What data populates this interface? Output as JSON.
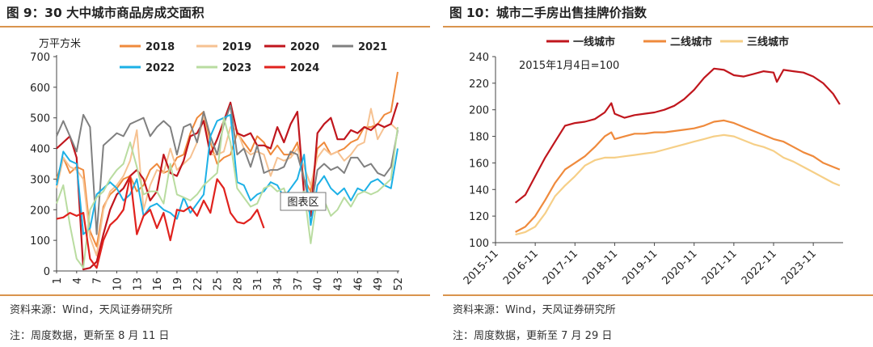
{
  "charts": [
    {
      "title": "图 9：30 大中城市商品房成交面积",
      "source": "资料来源：Wind，天风证券研究所",
      "note": "注：周度数据，更新至 8 月 11 日",
      "tooltip": "图表区"
    },
    {
      "title": "图 10：城市二手房出售挂牌价指数",
      "source": "资料来源：Wind，天风证券研究所",
      "note": "注：周度数据，更新至 7 月 29 日",
      "annotation": "2015年1月4日=100"
    }
  ],
  "chart_data": [
    {
      "type": "line",
      "title": "30 大中城市商品房成交面积",
      "ylabel": "万平方米",
      "ylim": [
        0,
        700
      ],
      "yticks": [
        0,
        100,
        200,
        300,
        400,
        500,
        600,
        700
      ],
      "xticks": [
        "1",
        "4",
        "7",
        "10",
        "13",
        "16",
        "19",
        "22",
        "25",
        "28",
        "31",
        "34",
        "37",
        "40",
        "43",
        "46",
        "49",
        "52"
      ],
      "legend_position": "top-center",
      "series": [
        {
          "name": "2018",
          "color": "#ef8a3c",
          "values": [
            300,
            370,
            320,
            340,
            330,
            130,
            80,
            210,
            250,
            270,
            300,
            310,
            260,
            280,
            330,
            350,
            320,
            330,
            370,
            380,
            450,
            500,
            520,
            420,
            350,
            370,
            380,
            450,
            420,
            390,
            440,
            420,
            380,
            410,
            380,
            380,
            420,
            300,
            260,
            400,
            420,
            380,
            390,
            400,
            420,
            430,
            470,
            470,
            480,
            510,
            520,
            650
          ]
        },
        {
          "name": "2019",
          "color": "#f6c292",
          "values": [
            270,
            370,
            340,
            330,
            300,
            110,
            50,
            200,
            260,
            280,
            310,
            360,
            460,
            200,
            280,
            330,
            320,
            400,
            330,
            350,
            370,
            420,
            500,
            380,
            380,
            390,
            470,
            460,
            400,
            380,
            390,
            380,
            310,
            370,
            360,
            370,
            400,
            340,
            280,
            370,
            400,
            380,
            390,
            360,
            380,
            410,
            420,
            530,
            430,
            470,
            480,
            460
          ]
        },
        {
          "name": "2020",
          "color": "#c0161d",
          "values": [
            400,
            420,
            440,
            370,
            5,
            10,
            30,
            120,
            200,
            250,
            270,
            310,
            330,
            300,
            230,
            260,
            380,
            320,
            310,
            360,
            440,
            450,
            490,
            380,
            430,
            490,
            550,
            450,
            440,
            450,
            410,
            410,
            400,
            470,
            420,
            480,
            520,
            250,
            180,
            450,
            480,
            500,
            430,
            430,
            460,
            450,
            470,
            460,
            480,
            470,
            480,
            550
          ]
        },
        {
          "name": "2021",
          "color": "#808080",
          "values": [
            440,
            490,
            440,
            390,
            510,
            470,
            120,
            410,
            430,
            450,
            440,
            480,
            490,
            500,
            440,
            470,
            490,
            470,
            380,
            470,
            480,
            420,
            520,
            440,
            380,
            480,
            540,
            380,
            400,
            340,
            410,
            320,
            330,
            330,
            340,
            390,
            380,
            300,
            200,
            330,
            350,
            330,
            340,
            320,
            370,
            370,
            340,
            350,
            320,
            310,
            340,
            460
          ]
        },
        {
          "name": "2022",
          "color": "#1cb0e6",
          "values": [
            280,
            390,
            360,
            350,
            120,
            140,
            250,
            270,
            290,
            270,
            230,
            250,
            300,
            180,
            210,
            220,
            200,
            190,
            170,
            240,
            190,
            220,
            250,
            440,
            490,
            500,
            510,
            290,
            280,
            230,
            250,
            260,
            290,
            280,
            240,
            270,
            300,
            380,
            150,
            280,
            310,
            270,
            250,
            270,
            230,
            270,
            260,
            290,
            300,
            280,
            270,
            400
          ]
        },
        {
          "name": "2023",
          "color": "#b9dca0",
          "values": [
            220,
            280,
            150,
            40,
            10,
            200,
            240,
            260,
            300,
            330,
            350,
            420,
            340,
            250,
            260,
            260,
            220,
            350,
            250,
            240,
            230,
            250,
            280,
            300,
            320,
            500,
            420,
            270,
            240,
            210,
            220,
            270,
            280,
            260,
            270,
            200,
            230,
            260,
            90,
            250,
            230,
            180,
            200,
            240,
            210,
            250,
            260,
            250,
            260,
            280,
            300,
            470
          ]
        },
        {
          "name": "2024",
          "color": "#e0221e",
          "values": [
            170,
            175,
            190,
            180,
            190,
            40,
            10,
            100,
            150,
            170,
            200,
            310,
            120,
            180,
            200,
            140,
            190,
            100,
            200,
            195,
            210,
            180,
            230,
            190,
            300,
            270,
            190,
            160,
            155,
            170,
            200,
            140
          ]
        }
      ]
    },
    {
      "type": "line",
      "title": "城市二手房出售挂牌价指数",
      "ylim": [
        100,
        240
      ],
      "yticks": [
        100,
        120,
        140,
        160,
        180,
        200,
        220,
        240
      ],
      "xticks": [
        "2015-11",
        "2016-11",
        "2017-11",
        "2018-11",
        "2019-11",
        "2020-11",
        "2021-11",
        "2022-11",
        "2023-11"
      ],
      "xlim": [
        "2015-11",
        "2024-08"
      ],
      "annotation": "2015年1月4日=100",
      "legend_position": "top-center",
      "series": [
        {
          "name": "一线城市",
          "color": "#c0161d",
          "x": [
            "2016-05",
            "2016-08",
            "2016-11",
            "2017-02",
            "2017-05",
            "2017-08",
            "2017-11",
            "2018-02",
            "2018-05",
            "2018-08",
            "2018-10",
            "2018-11",
            "2019-02",
            "2019-05",
            "2019-08",
            "2019-11",
            "2020-02",
            "2020-05",
            "2020-08",
            "2020-11",
            "2021-02",
            "2021-05",
            "2021-08",
            "2021-11",
            "2022-02",
            "2022-05",
            "2022-08",
            "2022-11",
            "2022-12",
            "2023-02",
            "2023-05",
            "2023-08",
            "2023-11",
            "2024-02",
            "2024-05",
            "2024-07"
          ],
          "values": [
            130,
            136,
            150,
            164,
            176,
            188,
            190,
            191,
            193,
            198,
            205,
            197,
            194,
            196,
            197,
            198,
            200,
            203,
            208,
            215,
            224,
            231,
            230,
            226,
            225,
            227,
            229,
            228,
            221,
            230,
            229,
            228,
            225,
            220,
            212,
            204
          ]
        },
        {
          "name": "二线城市",
          "color": "#ef8a3c",
          "x": [
            "2016-05",
            "2016-08",
            "2016-11",
            "2017-02",
            "2017-05",
            "2017-08",
            "2017-11",
            "2018-02",
            "2018-05",
            "2018-08",
            "2018-10",
            "2018-11",
            "2019-02",
            "2019-05",
            "2019-08",
            "2019-11",
            "2020-02",
            "2020-05",
            "2020-08",
            "2020-11",
            "2021-02",
            "2021-05",
            "2021-08",
            "2021-11",
            "2022-02",
            "2022-05",
            "2022-08",
            "2022-11",
            "2023-02",
            "2023-05",
            "2023-08",
            "2023-11",
            "2024-02",
            "2024-05",
            "2024-07"
          ],
          "values": [
            108,
            112,
            120,
            132,
            145,
            155,
            160,
            165,
            172,
            180,
            183,
            178,
            180,
            182,
            182,
            183,
            183,
            184,
            185,
            186,
            188,
            191,
            192,
            190,
            187,
            184,
            181,
            178,
            176,
            172,
            168,
            165,
            160,
            157,
            155
          ]
        },
        {
          "name": "三线城市",
          "color": "#f6cf87",
          "x": [
            "2016-05",
            "2016-08",
            "2016-11",
            "2017-02",
            "2017-05",
            "2017-08",
            "2017-11",
            "2018-02",
            "2018-05",
            "2018-08",
            "2018-11",
            "2019-02",
            "2019-05",
            "2019-08",
            "2019-11",
            "2020-02",
            "2020-05",
            "2020-08",
            "2020-11",
            "2021-02",
            "2021-05",
            "2021-08",
            "2021-11",
            "2022-02",
            "2022-05",
            "2022-08",
            "2022-11",
            "2023-02",
            "2023-05",
            "2023-08",
            "2023-11",
            "2024-02",
            "2024-05",
            "2024-07"
          ],
          "values": [
            106,
            108,
            112,
            122,
            135,
            143,
            150,
            158,
            162,
            164,
            164,
            165,
            166,
            167,
            168,
            170,
            172,
            174,
            176,
            178,
            180,
            181,
            180,
            177,
            174,
            172,
            169,
            164,
            161,
            157,
            153,
            149,
            145,
            143
          ]
        }
      ]
    }
  ]
}
